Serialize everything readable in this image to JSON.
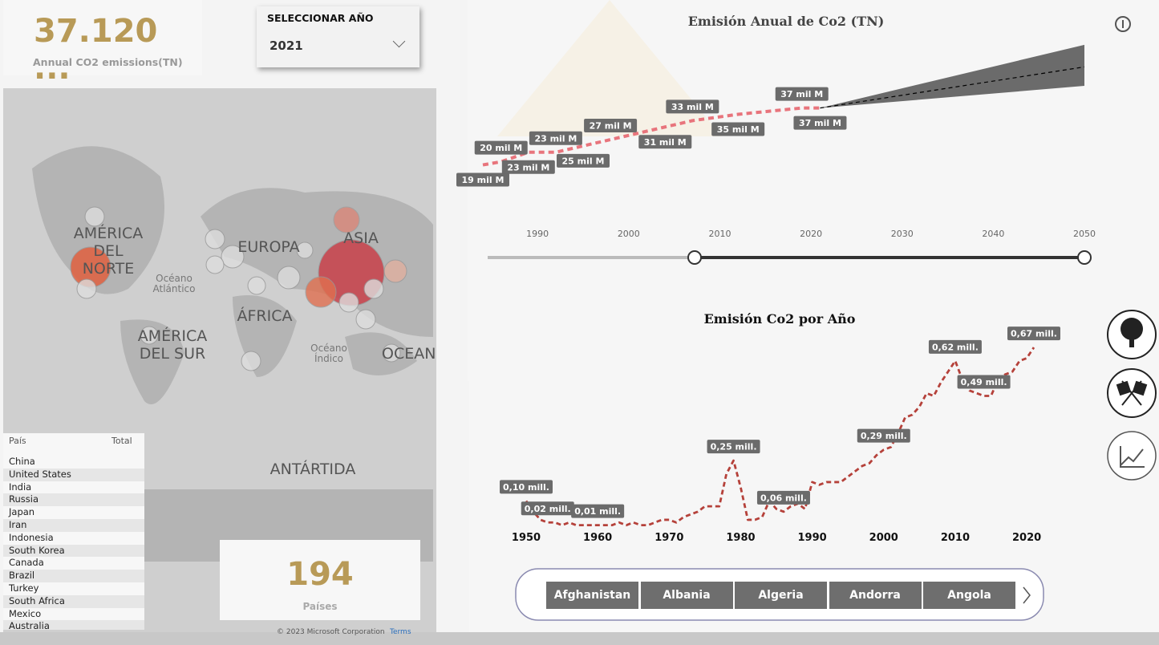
{
  "kpi": {
    "value": "37.120 ...",
    "label": "Annual CO2 emissions(TN)"
  },
  "slicer": {
    "title": "SELECCIONAR AÑO",
    "value": "2021"
  },
  "map": {
    "labels": [
      "AMÉRICA DEL NORTE",
      "EUROPA",
      "ASIA",
      "Océano Atlántico",
      "ÁFRICA",
      "AMÉRICA DEL SUR",
      "Océano Índico",
      "OCEAN",
      "ANTÁRTIDA"
    ],
    "copyright": "© 2023 Microsoft Corporation",
    "terms": "Terms"
  },
  "table": {
    "headers": [
      "País",
      "Total"
    ],
    "rows": [
      "China",
      "United States",
      "India",
      "Russia",
      "Japan",
      "Iran",
      "Indonesia",
      "South Korea",
      "Canada",
      "Brazil",
      "Turkey",
      "South Africa",
      "Mexico",
      "Australia"
    ]
  },
  "count_card": {
    "value": "194",
    "label": "Países"
  },
  "chart_data": [
    {
      "type": "line",
      "title": "Emisión Anual de Co2 (TN)",
      "x": [
        1984,
        1986,
        1989,
        1992,
        1995,
        1998,
        2004,
        2007,
        2012,
        2019,
        2021
      ],
      "series": [
        {
          "color": "#e8747c",
          "values": [
            19,
            20,
            23,
            23,
            25,
            27,
            31,
            33,
            35,
            37,
            37
          ],
          "value_labels": [
            "19 mil M",
            "20 mil M",
            "23 mil M",
            "23 mil M",
            "25 mil M",
            "27 mil M",
            "31 mil M",
            "33 mil M",
            "35 mil M",
            "37 mil M",
            "37 mil M"
          ]
        }
      ],
      "forecast": {
        "x": [
          2021,
          2050
        ],
        "values": [
          37,
          50
        ],
        "upper": [
          37,
          57
        ],
        "lower": [
          37,
          44
        ],
        "color": "#6b6b6b"
      },
      "xlim": [
        1984,
        2050
      ],
      "xticks": [
        1990,
        2000,
        2010,
        2020,
        2030,
        2040,
        2050
      ],
      "ylim": [
        10,
        60
      ]
    },
    {
      "type": "line",
      "title": "Emisión Co2 por Año",
      "x": [
        1950,
        1951,
        1952,
        1953,
        1954,
        1955,
        1956,
        1957,
        1958,
        1959,
        1960,
        1961,
        1962,
        1963,
        1964,
        1965,
        1966,
        1967,
        1968,
        1969,
        1970,
        1971,
        1972,
        1973,
        1974,
        1975,
        1976,
        1977,
        1978,
        1979,
        1980,
        1981,
        1982,
        1983,
        1984,
        1985,
        1986,
        1987,
        1988,
        1989,
        1990,
        1991,
        1992,
        1993,
        1994,
        1995,
        1996,
        1997,
        1998,
        1999,
        2000,
        2001,
        2002,
        2003,
        2004,
        2005,
        2006,
        2007,
        2008,
        2009,
        2010,
        2011,
        2012,
        2013,
        2014,
        2015,
        2016,
        2017,
        2018,
        2019,
        2020,
        2021
      ],
      "series": [
        {
          "color": "#b5413a",
          "values": [
            0.1,
            0.06,
            0.03,
            0.02,
            0.02,
            0.01,
            0.02,
            0.01,
            0.01,
            0.01,
            0.01,
            0.01,
            0.01,
            0.02,
            0.01,
            0.02,
            0.01,
            0.01,
            0.02,
            0.03,
            0.03,
            0.02,
            0.04,
            0.05,
            0.06,
            0.08,
            0.08,
            0.08,
            0.2,
            0.25,
            0.15,
            0.03,
            0.03,
            0.04,
            0.1,
            0.07,
            0.06,
            0.08,
            0.09,
            0.07,
            0.17,
            0.16,
            0.17,
            0.17,
            0.17,
            0.19,
            0.21,
            0.23,
            0.24,
            0.27,
            0.29,
            0.3,
            0.35,
            0.41,
            0.42,
            0.45,
            0.5,
            0.49,
            0.54,
            0.58,
            0.62,
            0.55,
            0.51,
            0.5,
            0.49,
            0.49,
            0.55,
            0.57,
            0.58,
            0.62,
            0.63,
            0.67
          ],
          "value_labels": [
            "0,10 mill.",
            null,
            null,
            "0,02 mill.",
            null,
            null,
            null,
            null,
            null,
            null,
            "0,01 mill.",
            null,
            null,
            null,
            null,
            null,
            null,
            null,
            null,
            null,
            null,
            null,
            null,
            null,
            null,
            null,
            null,
            null,
            null,
            "0,25 mill.",
            null,
            null,
            null,
            null,
            null,
            null,
            "0,06 mill.",
            null,
            null,
            null,
            null,
            null,
            null,
            null,
            null,
            null,
            null,
            null,
            null,
            null,
            "0,29 mill.",
            null,
            null,
            null,
            null,
            null,
            null,
            null,
            null,
            null,
            "0,62 mill.",
            null,
            null,
            null,
            "0,49 mill.",
            null,
            null,
            null,
            null,
            null,
            null,
            "0,67 mill."
          ]
        }
      ],
      "xlim": [
        1950,
        2021
      ],
      "xticks": [
        1950,
        1960,
        1970,
        1980,
        1990,
        2000,
        2010,
        2020
      ],
      "ylim": [
        0,
        0.7
      ]
    }
  ],
  "buttons": [
    "Afghanistan",
    "Albania",
    "Algeria",
    "Andorra",
    "Angola"
  ]
}
